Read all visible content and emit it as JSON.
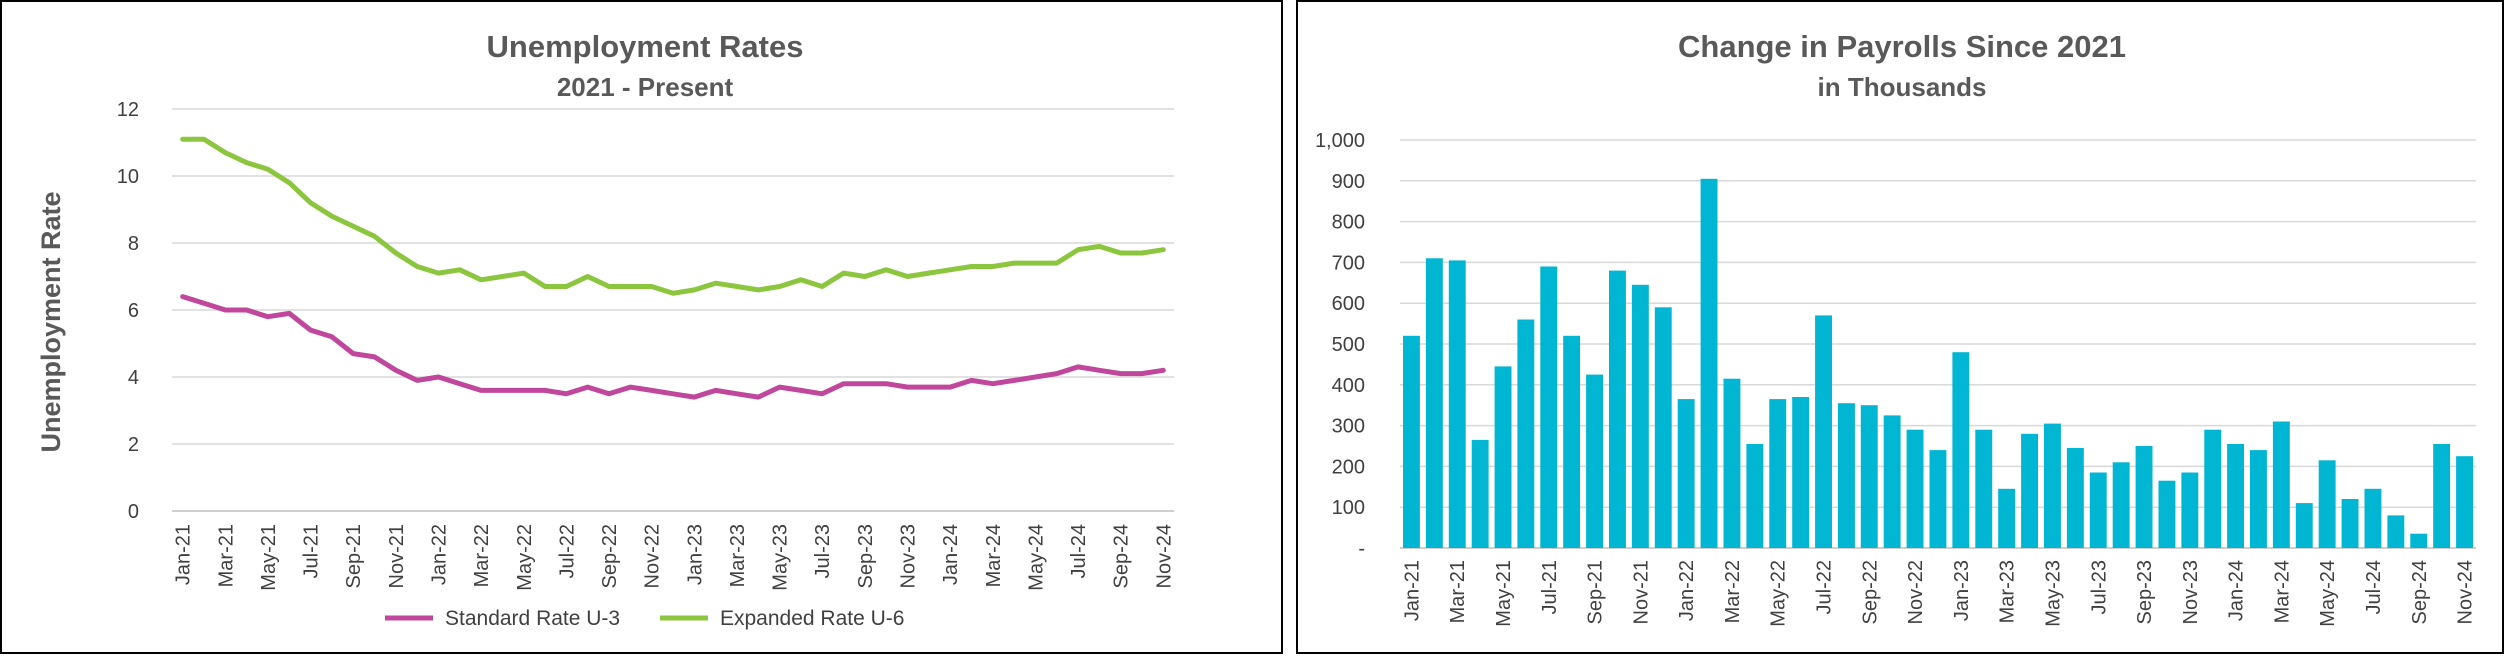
{
  "charts": {
    "unemployment": {
      "title": "Unemployment Rates",
      "subtitle": "2021 - Present",
      "ylabel": "Unemployment Rate"
    },
    "payrolls": {
      "title": "Change in Payrolls Since 2021",
      "subtitle": "in Thousands"
    }
  },
  "chart_data": [
    {
      "type": "line",
      "title": "Unemployment Rates",
      "subtitle": "2021 - Present",
      "ylabel": "Unemployment Rate",
      "xlabel": "",
      "ylim": [
        0,
        12
      ],
      "yticks": [
        "0",
        "2",
        "4",
        "6",
        "8",
        "10",
        "12"
      ],
      "grid": true,
      "legend": "bottom",
      "x": [
        "Jan-21",
        "Feb-21",
        "Mar-21",
        "Apr-21",
        "May-21",
        "Jun-21",
        "Jul-21",
        "Aug-21",
        "Sep-21",
        "Oct-21",
        "Nov-21",
        "Dec-21",
        "Jan-22",
        "Feb-22",
        "Mar-22",
        "Apr-22",
        "May-22",
        "Jun-22",
        "Jul-22",
        "Aug-22",
        "Sep-22",
        "Oct-22",
        "Nov-22",
        "Dec-22",
        "Jan-23",
        "Feb-23",
        "Mar-23",
        "Apr-23",
        "May-23",
        "Jun-23",
        "Jul-23",
        "Aug-23",
        "Sep-23",
        "Oct-23",
        "Nov-23",
        "Dec-23",
        "Jan-24",
        "Feb-24",
        "Mar-24",
        "Apr-24",
        "May-24",
        "Jun-24",
        "Jul-24",
        "Aug-24",
        "Sep-24",
        "Oct-24",
        "Nov-24"
      ],
      "x_tick_labels": [
        "Jan-21",
        "Mar-21",
        "May-21",
        "Jul-21",
        "Sep-21",
        "Nov-21",
        "Jan-22",
        "Mar-22",
        "May-22",
        "Jul-22",
        "Sep-22",
        "Nov-22",
        "Jan-23",
        "Mar-23",
        "May-23",
        "Jul-23",
        "Sep-23",
        "Nov-23",
        "Jan-24",
        "Mar-24",
        "May-24",
        "Jul-24",
        "Sep-24",
        "Nov-24"
      ],
      "series": [
        {
          "name": "Standard Rate U-3",
          "color": "#c0479c",
          "values": [
            6.4,
            6.2,
            6.0,
            6.0,
            5.8,
            5.9,
            5.4,
            5.2,
            4.7,
            4.6,
            4.2,
            3.9,
            4.0,
            3.8,
            3.6,
            3.6,
            3.6,
            3.6,
            3.5,
            3.7,
            3.5,
            3.7,
            3.6,
            3.5,
            3.4,
            3.6,
            3.5,
            3.4,
            3.7,
            3.6,
            3.5,
            3.8,
            3.8,
            3.8,
            3.7,
            3.7,
            3.7,
            3.9,
            3.8,
            3.9,
            4.0,
            4.1,
            4.3,
            4.2,
            4.1,
            4.1,
            4.2
          ]
        },
        {
          "name": "Expanded Rate U-6",
          "color": "#8cc63e",
          "values": [
            11.1,
            11.1,
            10.7,
            10.4,
            10.2,
            9.8,
            9.2,
            8.8,
            8.5,
            8.2,
            7.7,
            7.3,
            7.1,
            7.2,
            6.9,
            7.0,
            7.1,
            6.7,
            6.7,
            7.0,
            6.7,
            6.7,
            6.7,
            6.5,
            6.6,
            6.8,
            6.7,
            6.6,
            6.7,
            6.9,
            6.7,
            7.1,
            7.0,
            7.2,
            7.0,
            7.1,
            7.2,
            7.3,
            7.3,
            7.4,
            7.4,
            7.4,
            7.8,
            7.9,
            7.7,
            7.7,
            7.8
          ]
        }
      ]
    },
    {
      "type": "bar",
      "title": "Change in Payrolls Since 2021",
      "subtitle": "in Thousands",
      "xlabel": "",
      "ylabel": "",
      "ylim": [
        0,
        1000
      ],
      "yticks": [
        "-",
        "100",
        "200",
        "300",
        "400",
        "500",
        "600",
        "700",
        "800",
        "900",
        "1,000"
      ],
      "grid": true,
      "color": "#00b6d3",
      "categories": [
        "Jan-21",
        "Feb-21",
        "Mar-21",
        "Apr-21",
        "May-21",
        "Jun-21",
        "Jul-21",
        "Aug-21",
        "Sep-21",
        "Oct-21",
        "Nov-21",
        "Dec-21",
        "Jan-22",
        "Feb-22",
        "Mar-22",
        "Apr-22",
        "May-22",
        "Jun-22",
        "Jul-22",
        "Aug-22",
        "Sep-22",
        "Oct-22",
        "Nov-22",
        "Dec-22",
        "Jan-23",
        "Feb-23",
        "Mar-23",
        "Apr-23",
        "May-23",
        "Jun-23",
        "Jul-23",
        "Aug-23",
        "Sep-23",
        "Oct-23",
        "Nov-23",
        "Dec-23",
        "Jan-24",
        "Feb-24",
        "Mar-24",
        "Apr-24",
        "May-24",
        "Jun-24",
        "Jul-24",
        "Aug-24",
        "Sep-24",
        "Oct-24",
        "Nov-24"
      ],
      "x_tick_labels": [
        "Jan-21",
        "Mar-21",
        "May-21",
        "Jul-21",
        "Sep-21",
        "Nov-21",
        "Jan-22",
        "Mar-22",
        "May-22",
        "Jul-22",
        "Sep-22",
        "Nov-22",
        "Jan-23",
        "Mar-23",
        "May-23",
        "Jul-23",
        "Sep-23",
        "Nov-23",
        "Jan-24",
        "Mar-24",
        "May-24",
        "Jul-24",
        "Sep-24",
        "Nov-24"
      ],
      "values": [
        520,
        710,
        705,
        265,
        445,
        560,
        690,
        520,
        425,
        680,
        645,
        590,
        365,
        905,
        415,
        255,
        365,
        370,
        570,
        355,
        350,
        325,
        290,
        240,
        480,
        290,
        145,
        280,
        305,
        245,
        185,
        210,
        250,
        165,
        185,
        290,
        255,
        240,
        310,
        110,
        215,
        120,
        145,
        80,
        35,
        255,
        225
      ]
    }
  ]
}
